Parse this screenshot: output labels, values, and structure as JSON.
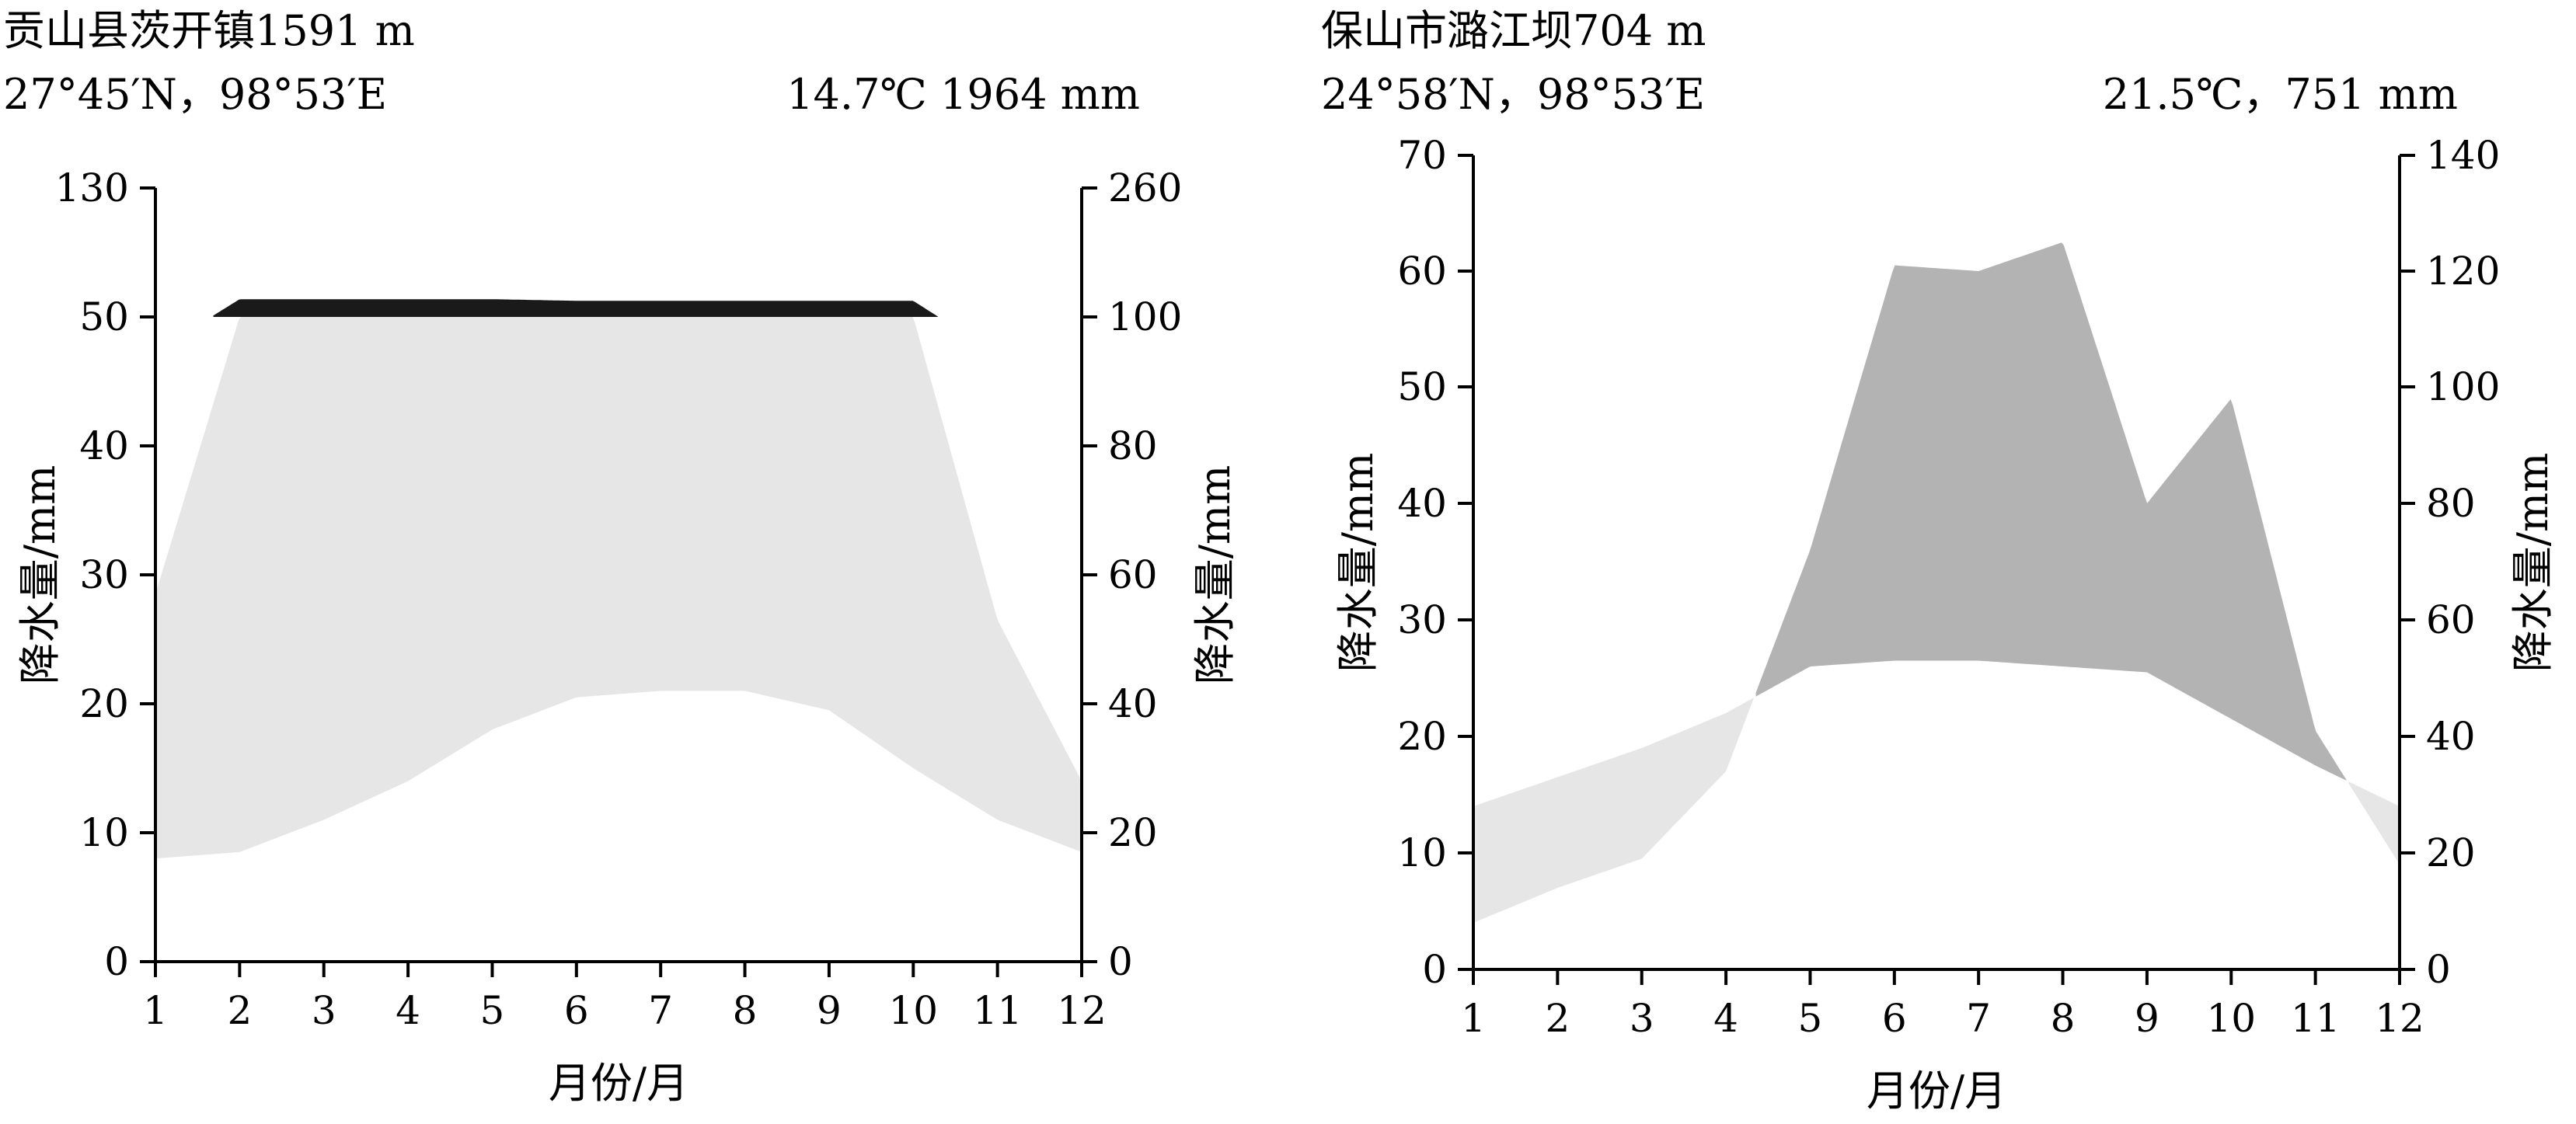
{
  "chart_data": [
    {
      "type": "area",
      "title": "贡山县茨开镇1591 m",
      "coordinates": "27°45′N，98°53′E",
      "summary": "14.7℃ 1964 mm",
      "xlabel": "月份/月",
      "ylabel_left": "降水量/mm",
      "ylabel_right": "降水量/mm",
      "x": [
        1,
        2,
        3,
        4,
        5,
        6,
        7,
        8,
        9,
        10,
        11,
        12
      ],
      "xlim": [
        1,
        12
      ],
      "left_ticks": [
        "0",
        "10",
        "20",
        "30",
        "40",
        "50",
        "130"
      ],
      "right_ticks": [
        "0",
        "20",
        "40",
        "60",
        "80",
        "100",
        "260"
      ],
      "right_ylim": [
        0,
        260
      ],
      "series": [
        {
          "name": "",
          "values": [
            57,
            122,
            122,
            122,
            122,
            120,
            120,
            120,
            120,
            120,
            53,
            28
          ]
        },
        {
          "name": "",
          "values": [
            16,
            17,
            22,
            28,
            36,
            41,
            42,
            42,
            39,
            30,
            22,
            17
          ]
        }
      ],
      "colors": {
        "humid": "#e6e6e6",
        "perhumid": "#1a1a1a",
        "arid": "#b3b3b3"
      }
    },
    {
      "type": "area",
      "title": "保山市潞江坝704 m",
      "coordinates": "24°58′N，98°53′E",
      "summary": "21.5℃，751 mm",
      "xlabel": "月份/月",
      "ylabel_left": "降水量/mm",
      "ylabel_right": "降水量/mm",
      "x": [
        1,
        2,
        3,
        4,
        5,
        6,
        7,
        8,
        9,
        10,
        11,
        12
      ],
      "xlim": [
        1,
        12
      ],
      "left_ticks": [
        "0",
        "10",
        "20",
        "30",
        "40",
        "50",
        "60",
        "70"
      ],
      "right_ticks": [
        "0",
        "20",
        "40",
        "60",
        "80",
        "100",
        "120",
        "140"
      ],
      "right_ylim": [
        0,
        140
      ],
      "series": [
        {
          "name": "",
          "values": [
            28,
            33,
            38,
            44,
            52,
            53,
            53,
            52,
            51,
            43,
            35,
            28
          ]
        },
        {
          "name": "",
          "values": [
            8,
            14,
            19,
            34,
            72,
            121,
            120,
            125,
            80,
            98,
            41,
            18
          ]
        }
      ],
      "colors": {
        "humid": "#e6e6e6",
        "perhumid": "#1a1a1a",
        "arid": "#b3b3b3"
      }
    }
  ]
}
